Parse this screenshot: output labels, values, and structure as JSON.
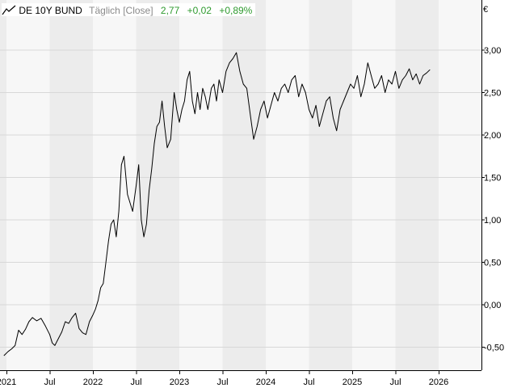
{
  "legend": {
    "instrument": "DE 10Y BUND",
    "frequency": "Täglich [Close]",
    "last": "2,77",
    "change": "+0,02",
    "change_pct": "+0,89%",
    "icon": "line-chart-icon"
  },
  "colors": {
    "line": "#000000",
    "positive": "#2e9a2e",
    "band_dark": "#ececec",
    "band_light": "#f7f7f7",
    "grid": "#d8d8d8",
    "axis": "#000000",
    "muted": "#8a8a8a"
  },
  "chart_data": {
    "type": "line",
    "title": "DE 10Y BUND",
    "subtitle": "Täglich [Close]",
    "unit_label": "€",
    "xlabel": "",
    "ylabel": "",
    "xlim": [
      2021.0,
      2026.1
    ],
    "ylim": [
      -0.65,
      3.1
    ],
    "grid": true,
    "x_ticks": [
      {
        "t": 2021.0,
        "label": "2021"
      },
      {
        "t": 2021.5,
        "label": "Jul"
      },
      {
        "t": 2022.0,
        "label": "2022"
      },
      {
        "t": 2022.5,
        "label": "Jul"
      },
      {
        "t": 2023.0,
        "label": "2023"
      },
      {
        "t": 2023.5,
        "label": "Jul"
      },
      {
        "t": 2024.0,
        "label": "2024"
      },
      {
        "t": 2024.5,
        "label": "Jul"
      },
      {
        "t": 2025.0,
        "label": "2025"
      },
      {
        "t": 2025.5,
        "label": "Jul"
      },
      {
        "t": 2026.0,
        "label": "2026"
      }
    ],
    "y_ticks": [
      {
        "v": 3.0,
        "label": "3,00"
      },
      {
        "v": 2.5,
        "label": "2,50"
      },
      {
        "v": 2.0,
        "label": "2,00"
      },
      {
        "v": 1.5,
        "label": "1,50"
      },
      {
        "v": 1.0,
        "label": "1,00"
      },
      {
        "v": 0.5,
        "label": "0,50"
      },
      {
        "v": 0.0,
        "label": "0,00"
      },
      {
        "v": -0.5,
        "label": "-0,50"
      }
    ],
    "series": [
      {
        "x": [
          2020.97,
          2021.02,
          2021.06,
          2021.1,
          2021.14,
          2021.18,
          2021.22,
          2021.26,
          2021.3,
          2021.35,
          2021.4,
          2021.45,
          2021.5,
          2021.53,
          2021.56,
          2021.6,
          2021.64,
          2021.68,
          2021.72,
          2021.76,
          2021.8,
          2021.84,
          2021.88,
          2021.92,
          2021.96,
          2022.0,
          2022.03,
          2022.06,
          2022.09,
          2022.12,
          2022.15,
          2022.18,
          2022.21,
          2022.24,
          2022.27,
          2022.3,
          2022.33,
          2022.36,
          2022.4,
          2022.43,
          2022.46,
          2022.5,
          2022.53,
          2022.56,
          2022.59,
          2022.62,
          2022.65,
          2022.68,
          2022.71,
          2022.74,
          2022.77,
          2022.8,
          2022.83,
          2022.86,
          2022.9,
          2022.94,
          2022.97,
          2023.0,
          2023.03,
          2023.06,
          2023.09,
          2023.12,
          2023.15,
          2023.18,
          2023.21,
          2023.24,
          2023.27,
          2023.3,
          2023.33,
          2023.37,
          2023.4,
          2023.43,
          2023.46,
          2023.5,
          2023.54,
          2023.58,
          2023.62,
          2023.66,
          2023.7,
          2023.74,
          2023.78,
          2023.82,
          2023.86,
          2023.9,
          2023.94,
          2023.98,
          2024.02,
          2024.06,
          2024.1,
          2024.14,
          2024.18,
          2024.22,
          2024.26,
          2024.3,
          2024.34,
          2024.38,
          2024.42,
          2024.46,
          2024.5,
          2024.54,
          2024.58,
          2024.62,
          2024.66,
          2024.7,
          2024.74,
          2024.78,
          2024.82,
          2024.86,
          2024.9,
          2024.94,
          2024.98,
          2025.02,
          2025.06,
          2025.1,
          2025.14,
          2025.18,
          2025.22,
          2025.26,
          2025.3,
          2025.34,
          2025.38,
          2025.42,
          2025.46,
          2025.5,
          2025.54,
          2025.58,
          2025.62,
          2025.66,
          2025.7,
          2025.74,
          2025.78,
          2025.82,
          2025.86,
          2025.9
        ],
        "y": [
          -0.6,
          -0.55,
          -0.52,
          -0.48,
          -0.3,
          -0.35,
          -0.29,
          -0.2,
          -0.15,
          -0.19,
          -0.16,
          -0.25,
          -0.35,
          -0.45,
          -0.48,
          -0.4,
          -0.32,
          -0.2,
          -0.22,
          -0.15,
          -0.1,
          -0.28,
          -0.33,
          -0.35,
          -0.2,
          -0.12,
          -0.05,
          0.05,
          0.2,
          0.25,
          0.5,
          0.75,
          0.95,
          1.0,
          0.8,
          1.1,
          1.65,
          1.75,
          1.3,
          1.2,
          1.1,
          1.4,
          1.65,
          1.0,
          0.8,
          0.95,
          1.35,
          1.6,
          1.9,
          2.1,
          2.15,
          2.4,
          2.1,
          1.85,
          1.95,
          2.5,
          2.3,
          2.15,
          2.3,
          2.4,
          2.65,
          2.75,
          2.4,
          2.25,
          2.5,
          2.3,
          2.55,
          2.45,
          2.3,
          2.55,
          2.6,
          2.4,
          2.65,
          2.5,
          2.75,
          2.85,
          2.9,
          2.97,
          2.75,
          2.6,
          2.55,
          2.25,
          1.95,
          2.1,
          2.3,
          2.4,
          2.2,
          2.35,
          2.5,
          2.4,
          2.55,
          2.6,
          2.5,
          2.65,
          2.7,
          2.45,
          2.6,
          2.5,
          2.3,
          2.2,
          2.35,
          2.1,
          2.25,
          2.4,
          2.45,
          2.2,
          2.05,
          2.3,
          2.4,
          2.5,
          2.6,
          2.55,
          2.7,
          2.45,
          2.6,
          2.85,
          2.7,
          2.55,
          2.6,
          2.7,
          2.5,
          2.65,
          2.6,
          2.75,
          2.55,
          2.65,
          2.7,
          2.78,
          2.65,
          2.72,
          2.6,
          2.7,
          2.73,
          2.77
        ]
      }
    ]
  }
}
